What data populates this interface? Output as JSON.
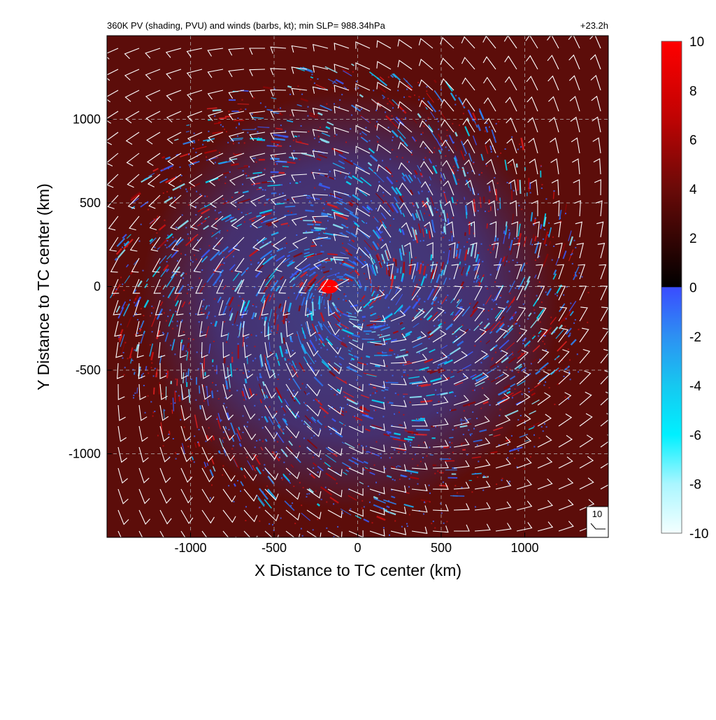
{
  "chart_data": {
    "type": "heatmap",
    "title": "360K PV (shading, PVU) and winds (barbs, kt); min SLP= 988.34hPa",
    "time_label": "+23.2h",
    "xlabel": "X Distance to TC center (km)",
    "ylabel": "Y Distance to TC center (km)",
    "xlim": [
      -1500,
      1500
    ],
    "ylim": [
      -1500,
      1500
    ],
    "x_ticks": [
      -1000,
      -500,
      0,
      500,
      1000
    ],
    "y_ticks": [
      -1000,
      -500,
      0,
      500,
      1000
    ],
    "grid": "dashed",
    "colorbar": {
      "label_unit": "PVU",
      "range": [
        -10,
        10
      ],
      "ticks": [
        -10,
        -8,
        -6,
        -4,
        -2,
        0,
        2,
        4,
        6,
        8,
        10
      ],
      "stops": [
        {
          "value": -10,
          "color": "#f4ffff"
        },
        {
          "value": -8,
          "color": "#aaf6ff"
        },
        {
          "value": -6,
          "color": "#00f0ff"
        },
        {
          "value": -4,
          "color": "#16c8f0"
        },
        {
          "value": -2,
          "color": "#2d90f2"
        },
        {
          "value": 0,
          "color": "#3a4cff"
        },
        {
          "value": 0.01,
          "color": "#000000"
        },
        {
          "value": 4,
          "color": "#6a0a08"
        },
        {
          "value": 7,
          "color": "#c20303"
        },
        {
          "value": 10,
          "color": "#ff0000"
        }
      ]
    },
    "background_color": "#5c0d0a",
    "pv_max_center": [
      -170,
      0
    ],
    "wind_reference_label": "10",
    "barb_color": "#ffffff"
  }
}
